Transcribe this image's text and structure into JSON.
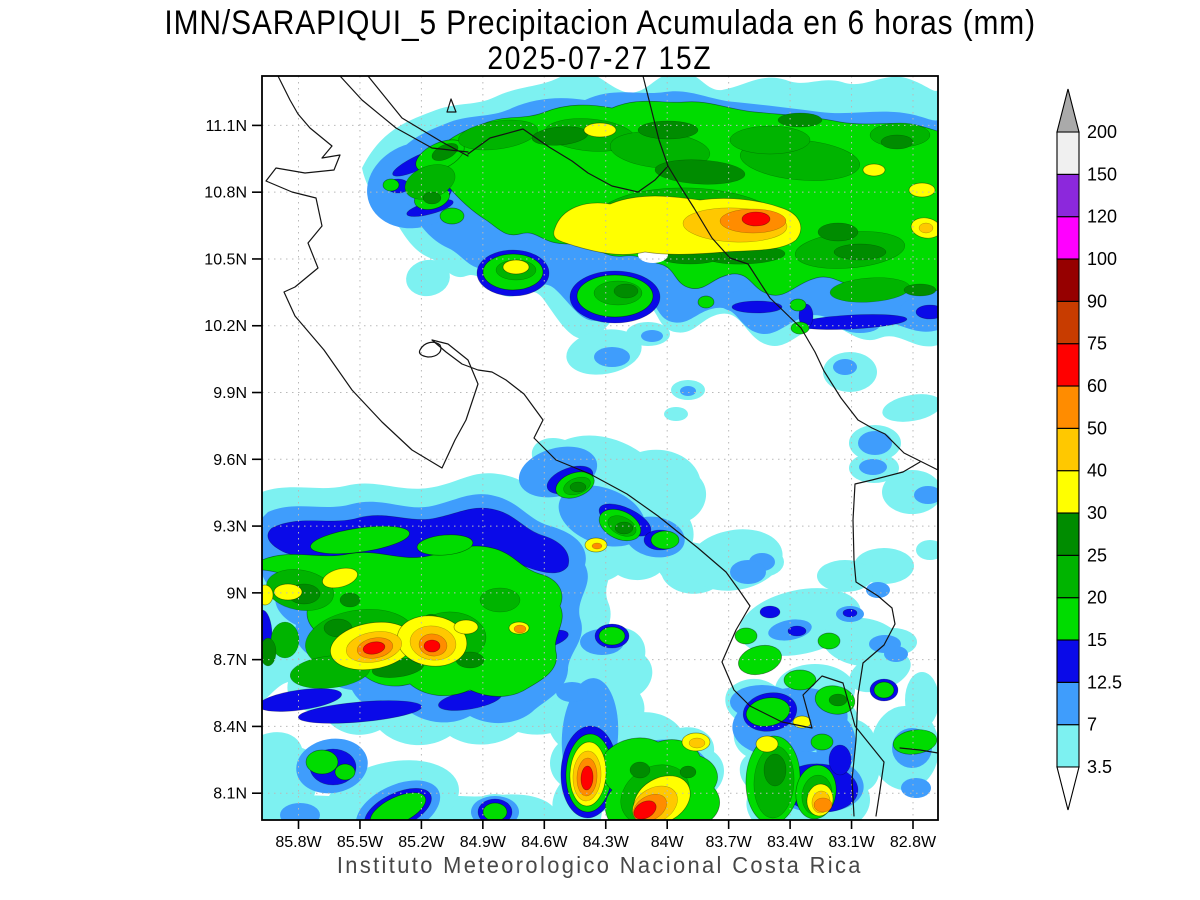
{
  "title": {
    "line1": "IMN/SARAPIQUI_5 Precipitacion Acumulada en 6 horas (mm)",
    "line2": "2025-07-27 15Z"
  },
  "footer": "Instituto Meteorologico Nacional Costa Rica",
  "axes": {
    "lat_ticks": [
      "11.1N",
      "10.8N",
      "10.5N",
      "10.2N",
      "9.9N",
      "9.6N",
      "9.3N",
      "9N",
      "8.7N",
      "8.4N",
      "8.1N"
    ],
    "lon_ticks": [
      "85.8W",
      "85.5W",
      "85.2W",
      "84.9W",
      "84.6W",
      "84.3W",
      "84W",
      "83.7W",
      "83.4W",
      "83.1W",
      "82.8W"
    ]
  },
  "colorbar": {
    "unit": "mm",
    "levels": [
      "3.5",
      "7",
      "12.5",
      "15",
      "20",
      "25",
      "30",
      "40",
      "50",
      "60",
      "75",
      "90",
      "100",
      "120",
      "150",
      "200"
    ],
    "segment_colors": [
      "#7DF1F1",
      "#3F9DFC",
      "#0A0AE8",
      "#00DC00",
      "#00B400",
      "#008C00",
      "#FFFF00",
      "#FFC800",
      "#FF8C00",
      "#FF0000",
      "#C83C00",
      "#960000",
      "#FF00FF",
      "#8C28DC",
      "#F0F0F0"
    ],
    "over_arrow_color": "#AAAAAA",
    "under_arrow_color": "#FFFFFF"
  },
  "chart_data": {
    "type": "heatmap",
    "title": "IMN/SARAPIQUI_5 Precipitacion Acumulada en 6 horas (mm)",
    "subtitle": "2025-07-27 15Z",
    "units": "mm",
    "x_ticks": [
      "85.8W",
      "85.5W",
      "85.2W",
      "84.9W",
      "84.6W",
      "84.3W",
      "84W",
      "83.7W",
      "83.4W",
      "83.1W",
      "82.8W"
    ],
    "y_ticks": [
      "11.1N",
      "10.8N",
      "10.5N",
      "10.2N",
      "9.9N",
      "9.6N",
      "9.3N",
      "9N",
      "8.7N",
      "8.4N",
      "8.1N"
    ],
    "contour_levels_mm": [
      3.5,
      7,
      12.5,
      15,
      20,
      25,
      30,
      40,
      50,
      60,
      75,
      90,
      100,
      120,
      150,
      200
    ],
    "legend_position": "right",
    "grid": "dotted lat/lon grid",
    "notable_features": [
      {
        "area": "broad band across north ~10.5-11.2N",
        "peak_mm": "60-75 near 83.6W 10.65N"
      },
      {
        "area": "southwest cluster ~85.0-85.8W 8.4-9.3N",
        "peak_mm": "60-75 (two red cores near 8.75N)"
      },
      {
        "area": "south-central ~84.3W 8.0-8.3N",
        "peak_mm": "60-75"
      },
      {
        "area": "southeast cluster ~83.3-83.8W 8.0-8.6N",
        "peak_mm": "50-60"
      },
      {
        "area": "scattered 3.5-15 mm patches elsewhere",
        "peak_mm": "7-15"
      }
    ]
  }
}
